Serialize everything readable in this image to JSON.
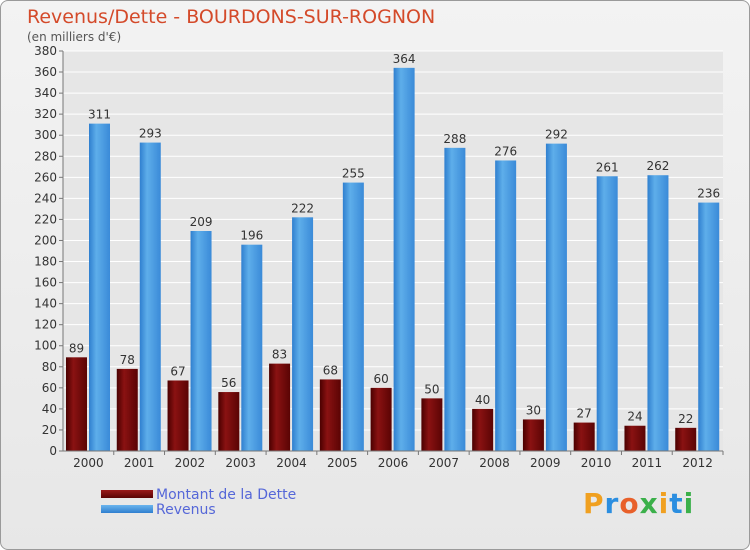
{
  "title": "Revenus/Dette - BOURDONS-SUR-ROGNON",
  "subtitle": "(en milliers d'€)",
  "legend": [
    {
      "label": "Montant de la Dette",
      "color": "#7a0a0a"
    },
    {
      "label": "Revenus",
      "color": "#4c9de0"
    }
  ],
  "logo": {
    "text": "Proxiti",
    "letters": [
      {
        "ch": "P",
        "color": "#f0a020"
      },
      {
        "ch": "r",
        "color": "#2b8ee0"
      },
      {
        "ch": "o",
        "color": "#e8602a"
      },
      {
        "ch": "x",
        "color": "#3bb04a"
      },
      {
        "ch": "i",
        "color": "#f0a020"
      },
      {
        "ch": "t",
        "color": "#2b8ee0"
      },
      {
        "ch": "i",
        "color": "#3bb04a"
      }
    ]
  },
  "chart_data": {
    "type": "bar",
    "title": "Revenus/Dette - BOURDONS-SUR-ROGNON",
    "subtitle": "(en milliers d'€)",
    "categories": [
      "2000",
      "2001",
      "2002",
      "2003",
      "2004",
      "2005",
      "2006",
      "2007",
      "2008",
      "2009",
      "2010",
      "2011",
      "2012"
    ],
    "series": [
      {
        "name": "Montant de la Dette",
        "color": "#7a0a0a",
        "values": [
          89,
          78,
          67,
          56,
          83,
          68,
          60,
          50,
          40,
          30,
          27,
          24,
          22
        ]
      },
      {
        "name": "Revenus",
        "color": "#4c9de0",
        "values": [
          311,
          293,
          209,
          196,
          222,
          255,
          364,
          288,
          276,
          292,
          261,
          262,
          236
        ]
      }
    ],
    "ylim": [
      0,
      380
    ],
    "yticks": [
      0,
      20,
      40,
      60,
      80,
      100,
      120,
      140,
      160,
      180,
      200,
      220,
      240,
      260,
      280,
      300,
      320,
      340,
      360,
      380
    ],
    "grid": true,
    "legend_position": "bottom-left"
  }
}
